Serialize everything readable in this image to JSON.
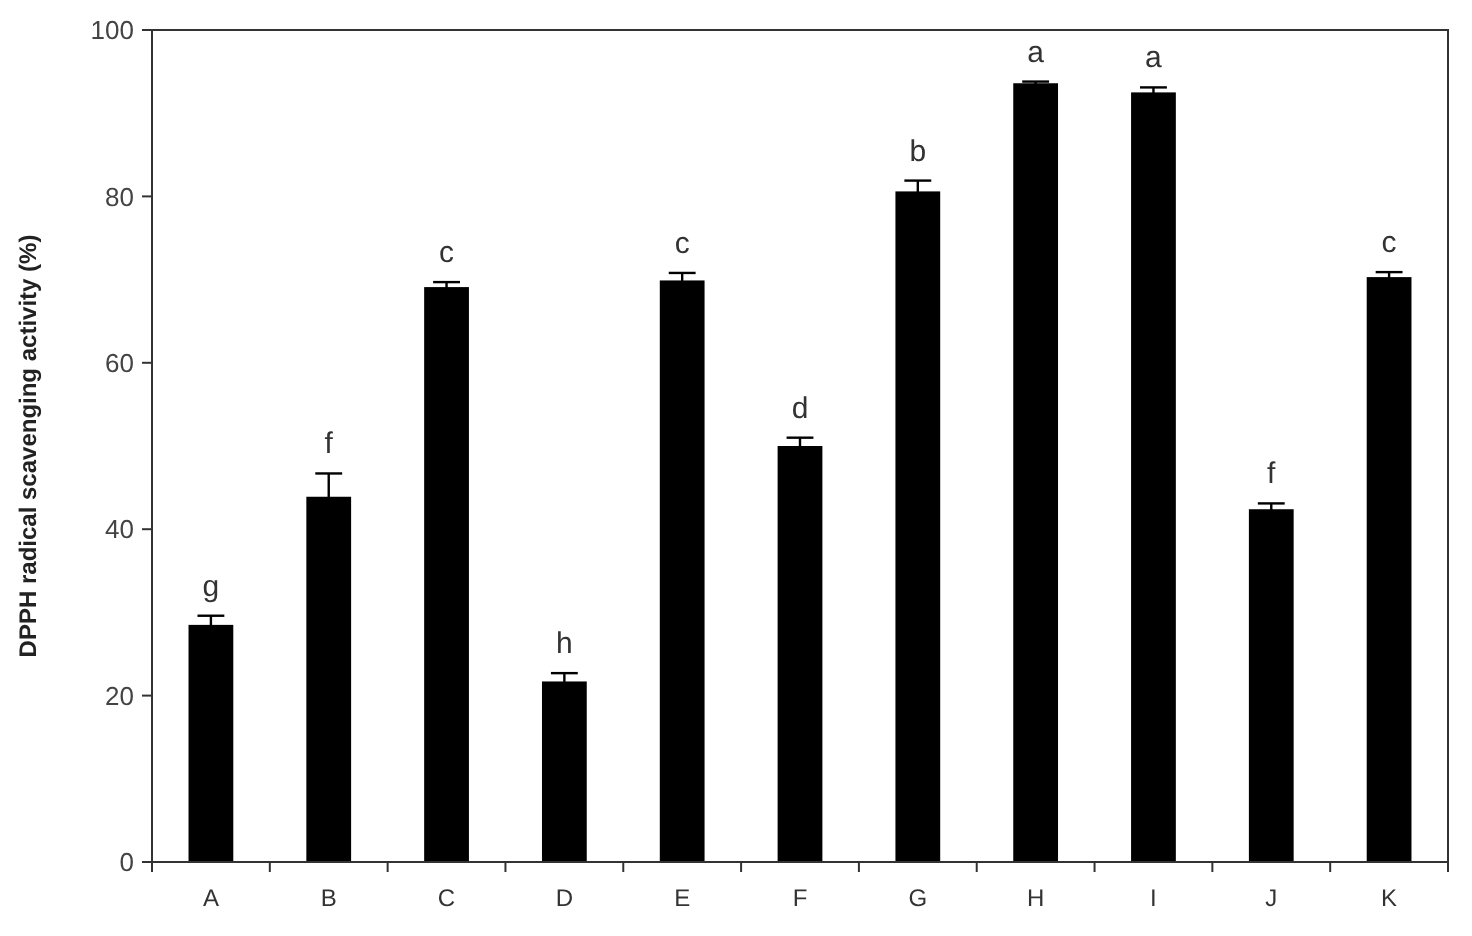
{
  "chart_data": {
    "type": "bar",
    "ylabel": "DPPH radical scavenging activity (%)",
    "categories": [
      "A",
      "B",
      "C",
      "D",
      "E",
      "F",
      "G",
      "H",
      "I",
      "J",
      "K"
    ],
    "values": [
      28.5,
      43.9,
      69.1,
      21.7,
      69.9,
      50.0,
      80.6,
      93.6,
      92.5,
      42.4,
      70.3
    ],
    "errors": [
      1.1,
      2.8,
      0.6,
      1.0,
      0.9,
      1.0,
      1.3,
      0.2,
      0.6,
      0.7,
      0.6
    ],
    "color": "#000000",
    "ylim": [
      0,
      100
    ],
    "yticks": [
      0,
      20,
      40,
      60,
      80,
      100
    ],
    "grid": false,
    "annotations": [
      {
        "text": "g",
        "x": "A",
        "y": 29.6
      },
      {
        "text": "f",
        "x": "B",
        "y": 46.7
      },
      {
        "text": "c",
        "x": "C",
        "y": 69.7
      },
      {
        "text": "h",
        "x": "D",
        "y": 22.7
      },
      {
        "text": "c",
        "x": "E",
        "y": 70.8
      },
      {
        "text": "d",
        "x": "F",
        "y": 51.0
      },
      {
        "text": "b",
        "x": "G",
        "y": 81.9
      },
      {
        "text": "a",
        "x": "H",
        "y": 93.8
      },
      {
        "text": "a",
        "x": "I",
        "y": 93.1
      },
      {
        "text": "f",
        "x": "J",
        "y": 43.1
      },
      {
        "text": "c",
        "x": "K",
        "y": 70.9
      }
    ]
  }
}
